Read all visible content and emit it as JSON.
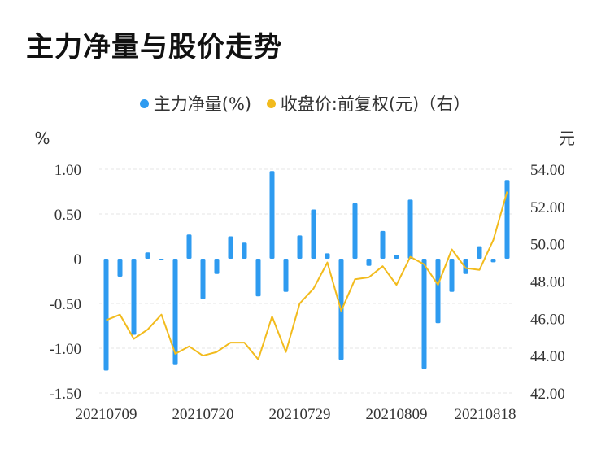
{
  "title": "主力净量与股价走势",
  "legend": {
    "series1": "主力净量(%)",
    "series2": "收盘价:前复权(元)（右）"
  },
  "colors": {
    "bar": "#2e9bf0",
    "line": "#f2bb1d",
    "grid": "#e6e6e6"
  },
  "chart_data": {
    "type": "bar+line",
    "left_axis": {
      "unit": "%",
      "ticks": [
        "1.00",
        "0.50",
        "0",
        "-0.50",
        "-1.00",
        "-1.50"
      ],
      "range": [
        -1.5,
        1.0
      ]
    },
    "right_axis": {
      "unit": "元",
      "ticks": [
        "54.00",
        "52.00",
        "50.00",
        "48.00",
        "46.00",
        "44.00",
        "42.00"
      ],
      "range": [
        42,
        54
      ]
    },
    "x_tick_labels": [
      "20210709",
      "20210720",
      "20210729",
      "20210809",
      "20210818"
    ],
    "x_tick_indices": [
      0,
      7,
      14,
      21,
      28
    ],
    "series": [
      {
        "name": "主力净量(%)",
        "type": "bar",
        "values": [
          -1.25,
          -0.2,
          -0.85,
          0.07,
          0.0,
          -1.18,
          0.27,
          -0.45,
          -0.17,
          0.25,
          0.18,
          -0.42,
          0.98,
          -0.37,
          0.26,
          0.55,
          0.06,
          -1.13,
          0.62,
          -0.08,
          0.31,
          0.04,
          0.66,
          -1.23,
          -0.72,
          -0.37,
          -0.17,
          0.14,
          -0.04,
          0.88
        ]
      },
      {
        "name": "收盘价:前复权(元)（右）",
        "type": "line",
        "values": [
          45.9,
          46.2,
          44.9,
          45.4,
          46.2,
          44.1,
          44.5,
          44.0,
          44.2,
          44.7,
          44.7,
          43.8,
          46.1,
          44.2,
          46.8,
          47.6,
          49.0,
          46.4,
          48.1,
          48.2,
          48.8,
          47.8,
          49.3,
          48.9,
          47.8,
          49.7,
          48.7,
          48.6,
          50.2,
          52.8
        ]
      }
    ]
  }
}
